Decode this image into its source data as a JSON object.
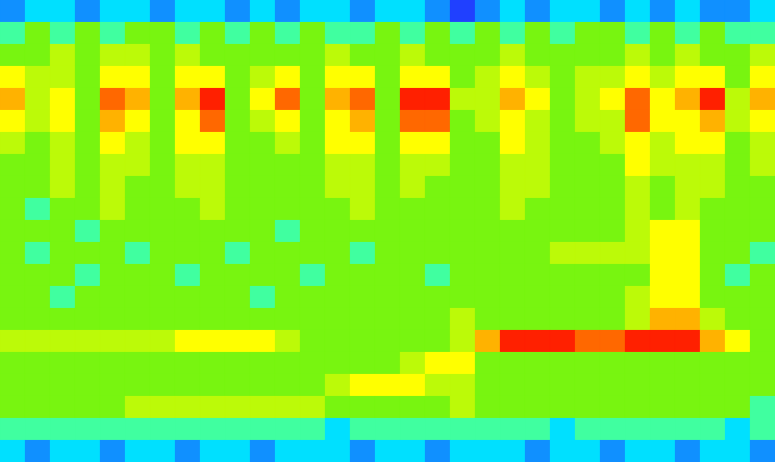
{
  "chart_data": {
    "type": "heatmap",
    "tick_labels": false,
    "zlim": [
      0,
      10
    ],
    "cells": [
      [
        2,
        3,
        3,
        2,
        3,
        3,
        2,
        3,
        3,
        2,
        3,
        2,
        3,
        3,
        2,
        3,
        3,
        2,
        1,
        2,
        3,
        2,
        3,
        3,
        2,
        3,
        2,
        3,
        2,
        2,
        3
      ],
      [
        4,
        5,
        4,
        5,
        4,
        5,
        5,
        4,
        5,
        4,
        5,
        4,
        5,
        4,
        4,
        5,
        4,
        5,
        4,
        5,
        4,
        5,
        4,
        5,
        5,
        4,
        5,
        4,
        5,
        4,
        4
      ],
      [
        5,
        5,
        6,
        5,
        6,
        6,
        5,
        6,
        5,
        5,
        5,
        5,
        5,
        6,
        5,
        5,
        6,
        5,
        5,
        5,
        6,
        5,
        5,
        5,
        5,
        6,
        5,
        6,
        5,
        5,
        6
      ],
      [
        7,
        6,
        6,
        5,
        7,
        7,
        5,
        7,
        7,
        5,
        6,
        7,
        5,
        7,
        7,
        5,
        7,
        7,
        5,
        6,
        7,
        6,
        5,
        6,
        6,
        7,
        6,
        7,
        7,
        5,
        7
      ],
      [
        8,
        6,
        7,
        5,
        9,
        8,
        5,
        8,
        10,
        5,
        7,
        9,
        5,
        8,
        9,
        5,
        10,
        10,
        6,
        6,
        8,
        7,
        5,
        6,
        7,
        9,
        7,
        8,
        10,
        6,
        8
      ],
      [
        7,
        6,
        7,
        5,
        8,
        7,
        5,
        7,
        9,
        5,
        6,
        7,
        5,
        7,
        8,
        5,
        9,
        9,
        5,
        6,
        7,
        6,
        5,
        6,
        6,
        9,
        7,
        7,
        8,
        6,
        7
      ],
      [
        6,
        5,
        6,
        5,
        7,
        6,
        5,
        7,
        7,
        5,
        5,
        6,
        5,
        7,
        7,
        5,
        7,
        7,
        5,
        5,
        7,
        6,
        5,
        5,
        6,
        7,
        6,
        7,
        7,
        5,
        6
      ],
      [
        5,
        5,
        6,
        5,
        6,
        6,
        5,
        6,
        6,
        5,
        5,
        5,
        5,
        6,
        6,
        5,
        6,
        6,
        5,
        5,
        6,
        6,
        5,
        5,
        5,
        7,
        6,
        6,
        6,
        5,
        6
      ],
      [
        5,
        5,
        6,
        5,
        6,
        5,
        5,
        6,
        6,
        5,
        5,
        5,
        5,
        6,
        6,
        5,
        6,
        5,
        5,
        5,
        6,
        6,
        5,
        5,
        5,
        6,
        5,
        6,
        6,
        5,
        5
      ],
      [
        5,
        4,
        5,
        5,
        6,
        5,
        5,
        5,
        6,
        5,
        5,
        5,
        5,
        5,
        6,
        5,
        5,
        5,
        5,
        5,
        6,
        5,
        5,
        5,
        5,
        6,
        5,
        6,
        5,
        5,
        5
      ],
      [
        5,
        5,
        5,
        4,
        5,
        5,
        5,
        5,
        5,
        5,
        5,
        4,
        5,
        5,
        5,
        5,
        5,
        5,
        5,
        5,
        5,
        5,
        5,
        5,
        5,
        6,
        7,
        7,
        5,
        5,
        5
      ],
      [
        5,
        4,
        5,
        5,
        5,
        4,
        5,
        5,
        5,
        4,
        5,
        5,
        5,
        5,
        4,
        5,
        5,
        5,
        5,
        5,
        5,
        5,
        6,
        6,
        6,
        6,
        7,
        7,
        5,
        5,
        4
      ],
      [
        5,
        5,
        5,
        4,
        5,
        5,
        5,
        4,
        5,
        5,
        5,
        5,
        4,
        5,
        5,
        5,
        5,
        4,
        5,
        5,
        5,
        5,
        5,
        5,
        5,
        5,
        7,
        7,
        5,
        4,
        5
      ],
      [
        5,
        5,
        4,
        5,
        5,
        5,
        5,
        5,
        5,
        5,
        4,
        5,
        5,
        5,
        5,
        5,
        5,
        5,
        5,
        5,
        5,
        5,
        5,
        5,
        5,
        6,
        7,
        7,
        5,
        5,
        5
      ],
      [
        5,
        5,
        5,
        5,
        5,
        5,
        5,
        5,
        5,
        5,
        5,
        5,
        5,
        5,
        5,
        5,
        5,
        5,
        6,
        5,
        5,
        5,
        5,
        5,
        5,
        6,
        8,
        8,
        6,
        5,
        5
      ],
      [
        6,
        6,
        6,
        6,
        6,
        6,
        6,
        7,
        7,
        7,
        7,
        6,
        5,
        5,
        5,
        5,
        5,
        5,
        6,
        8,
        10,
        10,
        10,
        9,
        9,
        10,
        10,
        10,
        8,
        7,
        5
      ],
      [
        5,
        5,
        5,
        5,
        5,
        5,
        5,
        5,
        5,
        5,
        5,
        5,
        5,
        5,
        5,
        5,
        6,
        7,
        7,
        5,
        5,
        5,
        5,
        5,
        5,
        5,
        5,
        5,
        5,
        5,
        5
      ],
      [
        5,
        5,
        5,
        5,
        5,
        5,
        5,
        5,
        5,
        5,
        5,
        5,
        5,
        6,
        7,
        7,
        7,
        6,
        6,
        5,
        5,
        5,
        5,
        5,
        5,
        5,
        5,
        5,
        5,
        5,
        5
      ],
      [
        5,
        5,
        5,
        5,
        5,
        6,
        6,
        6,
        6,
        6,
        6,
        6,
        6,
        5,
        5,
        5,
        5,
        5,
        6,
        5,
        5,
        5,
        5,
        5,
        5,
        5,
        5,
        5,
        5,
        5,
        4
      ],
      [
        4,
        4,
        4,
        4,
        4,
        4,
        4,
        4,
        4,
        4,
        4,
        4,
        4,
        3,
        4,
        4,
        4,
        4,
        4,
        4,
        4,
        4,
        3,
        4,
        4,
        4,
        4,
        4,
        4,
        3,
        4
      ],
      [
        3,
        2,
        3,
        3,
        2,
        3,
        3,
        2,
        3,
        3,
        2,
        3,
        3,
        3,
        2,
        3,
        3,
        2,
        3,
        3,
        3,
        2,
        3,
        3,
        2,
        3,
        3,
        2,
        3,
        3,
        2
      ]
    ]
  }
}
